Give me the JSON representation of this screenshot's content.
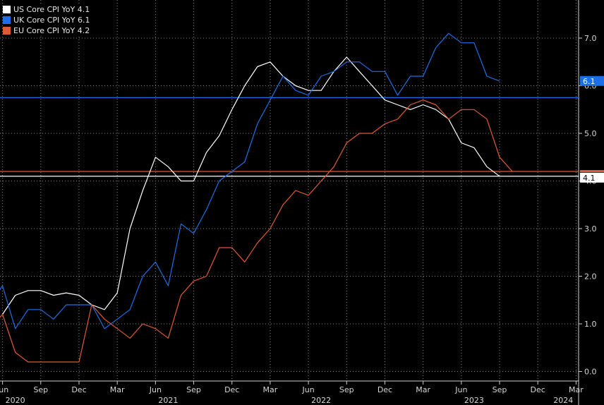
{
  "legend": [
    {
      "label": "US Core CPI YoY",
      "value": "4.1"
    },
    {
      "label": "UK Core CPI YoY",
      "value": "6.1"
    },
    {
      "label": "EU Core CPI YoY",
      "value": "4.2"
    }
  ],
  "chart_data": {
    "type": "line",
    "title": "",
    "xlabel": "",
    "ylabel": "",
    "ylim": [
      -0.2,
      7.8
    ],
    "grid": true,
    "legend_position": "top-left",
    "y_ticks": [
      "0.0",
      "1.0",
      "2.0",
      "3.0",
      "4.0",
      "5.0",
      "6.0",
      "7.0"
    ],
    "x_months": [
      "Jun",
      "Sep",
      "Dec",
      "Mar",
      "Jun",
      "Sep",
      "Dec",
      "Mar",
      "Jun",
      "Sep",
      "Dec",
      "Mar",
      "Jun",
      "Sep",
      "Dec",
      "Mar"
    ],
    "x_years": [
      "2020",
      "2021",
      "2022",
      "2023",
      "2024"
    ],
    "x_tick_dates": [
      "2020-06",
      "2020-09",
      "2020-12",
      "2021-03",
      "2021-06",
      "2021-09",
      "2021-12",
      "2022-03",
      "2022-06",
      "2022-09",
      "2022-12",
      "2023-03",
      "2023-06",
      "2023-09",
      "2023-12",
      "2024-03"
    ],
    "x_year_dates": [
      "2020-07",
      "2021-07",
      "2022-07",
      "2023-07",
      "2024-02"
    ],
    "x_range": [
      "2020-06",
      "2024-03"
    ],
    "series": [
      {
        "name": "US Core CPI YoY",
        "color": "#ffffff",
        "last_label": "4.1",
        "x": [
          "2020-06",
          "2020-07",
          "2020-08",
          "2020-09",
          "2020-10",
          "2020-11",
          "2020-12",
          "2021-01",
          "2021-02",
          "2021-03",
          "2021-04",
          "2021-05",
          "2021-06",
          "2021-07",
          "2021-08",
          "2021-09",
          "2021-10",
          "2021-11",
          "2021-12",
          "2022-01",
          "2022-02",
          "2022-03",
          "2022-04",
          "2022-05",
          "2022-06",
          "2022-07",
          "2022-08",
          "2022-09",
          "2022-10",
          "2022-11",
          "2022-12",
          "2023-01",
          "2023-02",
          "2023-03",
          "2023-04",
          "2023-05",
          "2023-06",
          "2023-07",
          "2023-08",
          "2023-09"
        ],
        "y": [
          1.2,
          1.6,
          1.7,
          1.7,
          1.6,
          1.65,
          1.6,
          1.4,
          1.3,
          1.65,
          3.0,
          3.8,
          4.5,
          4.3,
          4.0,
          4.0,
          4.6,
          4.95,
          5.5,
          6.0,
          6.4,
          6.5,
          6.2,
          6.0,
          5.9,
          5.9,
          6.3,
          6.6,
          6.3,
          6.0,
          5.7,
          5.6,
          5.5,
          5.6,
          5.5,
          5.3,
          4.8,
          4.7,
          4.3,
          4.1
        ]
      },
      {
        "name": "UK Core CPI YoY",
        "color": "#1e6fe6",
        "last_label": "6.1",
        "x": [
          "2020-05",
          "2020-06",
          "2020-07",
          "2020-08",
          "2020-09",
          "2020-10",
          "2020-11",
          "2020-12",
          "2021-01",
          "2021-02",
          "2021-03",
          "2021-04",
          "2021-05",
          "2021-06",
          "2021-07",
          "2021-08",
          "2021-09",
          "2021-10",
          "2021-11",
          "2021-12",
          "2022-01",
          "2022-02",
          "2022-03",
          "2022-04",
          "2022-05",
          "2022-06",
          "2022-07",
          "2022-08",
          "2022-09",
          "2022-10",
          "2022-11",
          "2022-12",
          "2023-01",
          "2023-02",
          "2023-03",
          "2023-04",
          "2023-05",
          "2023-06",
          "2023-07",
          "2023-08",
          "2023-09"
        ],
        "y": [
          1.4,
          1.8,
          0.9,
          1.3,
          1.3,
          1.1,
          1.4,
          1.4,
          1.4,
          0.9,
          1.1,
          1.3,
          2.0,
          2.3,
          1.8,
          3.1,
          2.9,
          3.4,
          4.0,
          4.2,
          4.4,
          5.2,
          5.7,
          6.2,
          5.9,
          5.8,
          6.2,
          6.3,
          6.5,
          6.5,
          6.3,
          6.3,
          5.8,
          6.2,
          6.2,
          6.8,
          7.1,
          6.9,
          6.9,
          6.2,
          6.1
        ]
      },
      {
        "name": "EU Core CPI YoY",
        "color": "#e05a35",
        "last_label": "4.2",
        "x": [
          "2020-05",
          "2020-06",
          "2020-07",
          "2020-08",
          "2020-09",
          "2020-10",
          "2020-11",
          "2020-12",
          "2021-01",
          "2021-02",
          "2021-03",
          "2021-04",
          "2021-05",
          "2021-06",
          "2021-07",
          "2021-08",
          "2021-09",
          "2021-10",
          "2021-11",
          "2021-12",
          "2022-01",
          "2022-02",
          "2022-03",
          "2022-04",
          "2022-05",
          "2022-06",
          "2022-07",
          "2022-08",
          "2022-09",
          "2022-10",
          "2022-11",
          "2022-12",
          "2023-01",
          "2023-02",
          "2023-03",
          "2023-04",
          "2023-05",
          "2023-06",
          "2023-07",
          "2023-08",
          "2023-09",
          "2023-10"
        ],
        "y": [
          0.9,
          1.2,
          0.4,
          0.2,
          0.2,
          0.2,
          0.2,
          0.2,
          1.4,
          1.1,
          0.9,
          0.7,
          1.0,
          0.9,
          0.7,
          1.6,
          1.9,
          2.0,
          2.6,
          2.6,
          2.3,
          2.7,
          3.0,
          3.5,
          3.8,
          3.7,
          4.0,
          4.3,
          4.8,
          5.0,
          5.0,
          5.2,
          5.3,
          5.6,
          5.7,
          5.6,
          5.3,
          5.5,
          5.5,
          5.3,
          4.5,
          4.2
        ]
      }
    ],
    "reference_lines": [
      {
        "y": 5.75,
        "color": "#1e6fe6"
      },
      {
        "y": 4.2,
        "color": "#e05a35"
      },
      {
        "y": 4.1,
        "color": "#ffffff"
      }
    ]
  }
}
